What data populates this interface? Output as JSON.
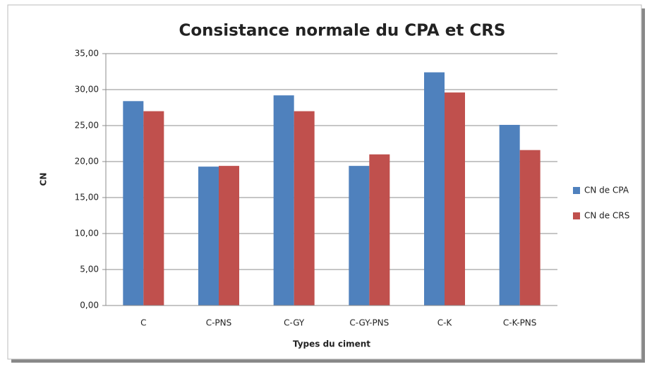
{
  "chart_data": {
    "type": "bar",
    "title": "Consistance normale du CPA et CRS",
    "x_label": "Types du ciment",
    "y_label": "CN",
    "categories": [
      "C",
      "C-PNS",
      "C-GY",
      "C-GY-PNS",
      "C-K",
      "C-K-PNS"
    ],
    "series": [
      {
        "name": "CN de CPA",
        "color": "#4f81bd",
        "values": [
          28.4,
          19.3,
          29.2,
          19.4,
          32.4,
          25.1
        ]
      },
      {
        "name": "CN de CRS",
        "color": "#c0504d",
        "values": [
          27.0,
          19.4,
          27.0,
          21.0,
          29.6,
          21.6
        ]
      }
    ],
    "ylim": [
      0,
      35
    ],
    "yticks": [
      {
        "value": 0,
        "label": "0,00"
      },
      {
        "value": 5,
        "label": "5,00"
      },
      {
        "value": 10,
        "label": "10,00"
      },
      {
        "value": 15,
        "label": "15,00"
      },
      {
        "value": 20,
        "label": "20,00"
      },
      {
        "value": 25,
        "label": "25,00"
      },
      {
        "value": 30,
        "label": "30,00"
      },
      {
        "value": 35,
        "label": "35,00"
      }
    ],
    "grid": true,
    "legend": "right"
  }
}
